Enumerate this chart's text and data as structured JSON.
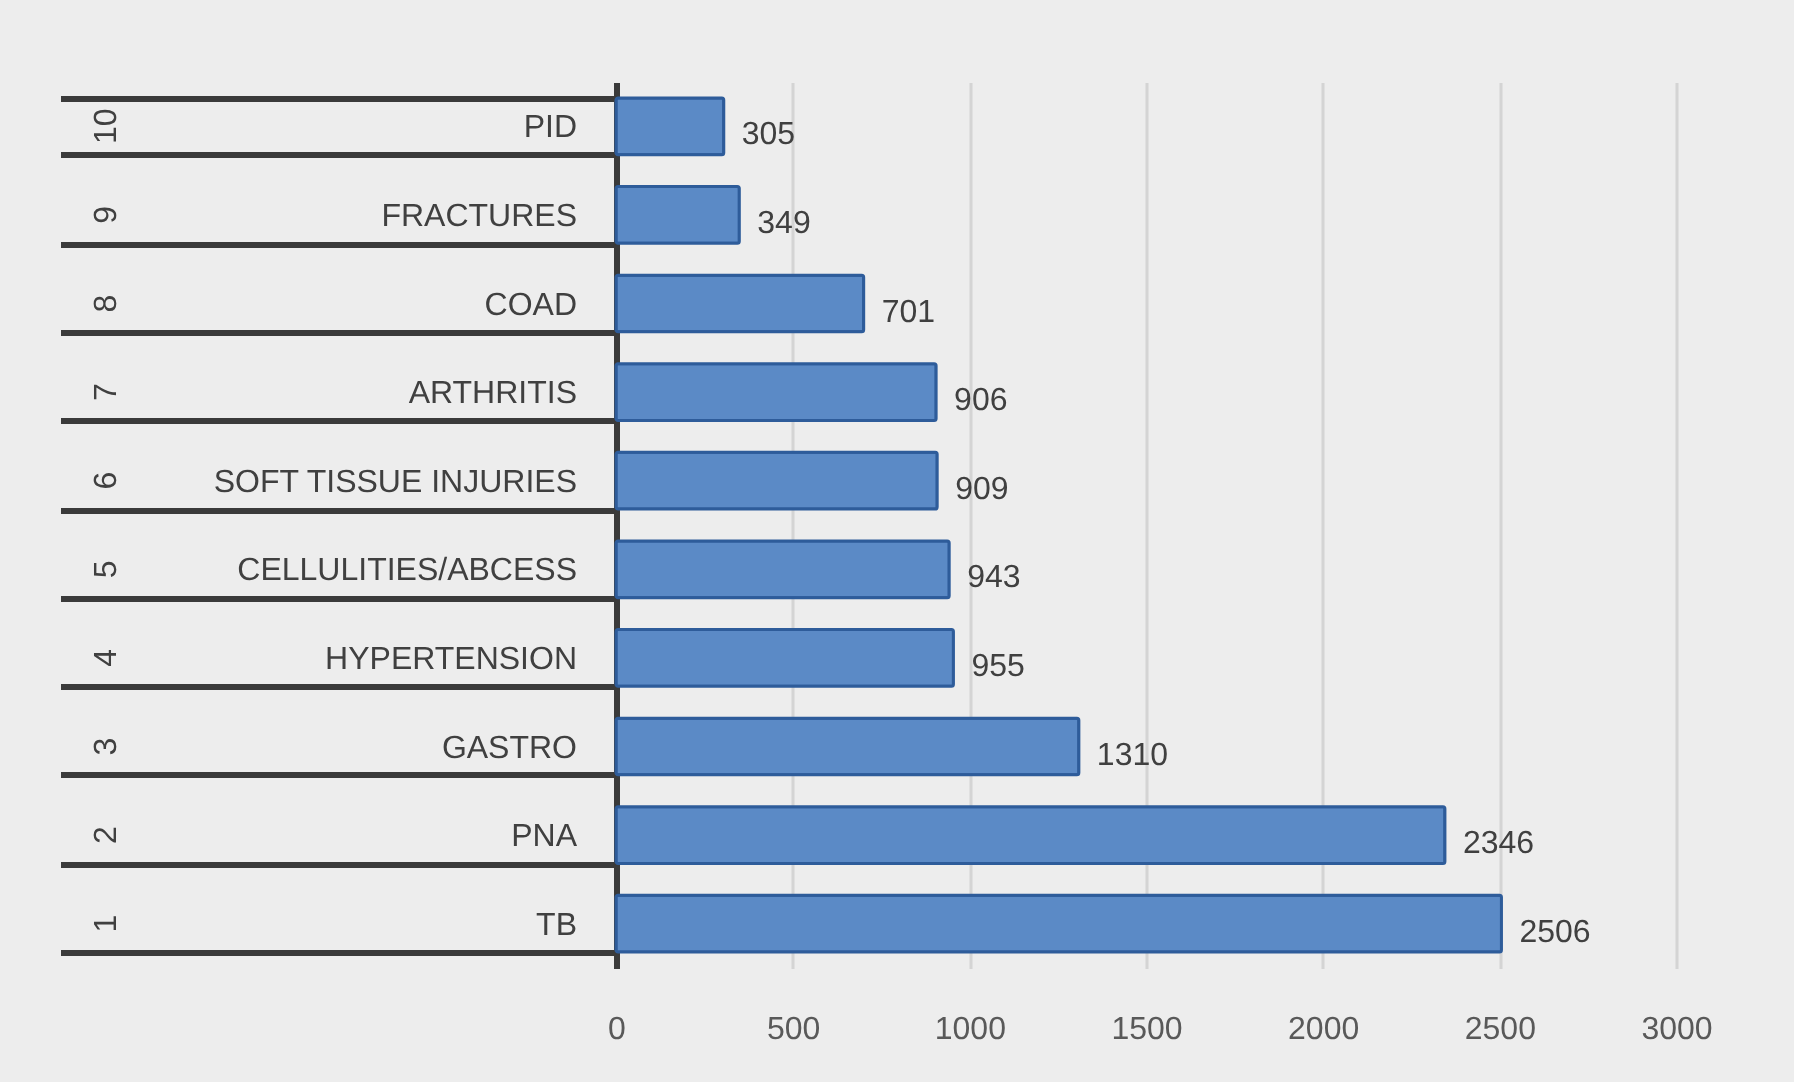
{
  "chart_data": {
    "type": "bar",
    "orientation": "horizontal",
    "categories": [
      "PID",
      "FRACTURES",
      "COAD",
      "ARTHRITIS",
      "SOFT TISSUE INJURIES",
      "CELLULITIES/ABCESS",
      "HYPERTENSION",
      "GASTRO",
      "PNA",
      "TB"
    ],
    "values": [
      305,
      349,
      701,
      906,
      909,
      943,
      955,
      1310,
      2346,
      2506
    ],
    "color": "#5b8ac6",
    "xlim": [
      0,
      3000
    ],
    "xticks": [
      0,
      500,
      1000,
      1500,
      2000,
      2500,
      3000
    ],
    "grid": "x",
    "data_labels": true,
    "annotations": [
      "10",
      "9",
      "8",
      "7",
      "6",
      "5",
      "4",
      "3",
      "2",
      "1"
    ]
  }
}
